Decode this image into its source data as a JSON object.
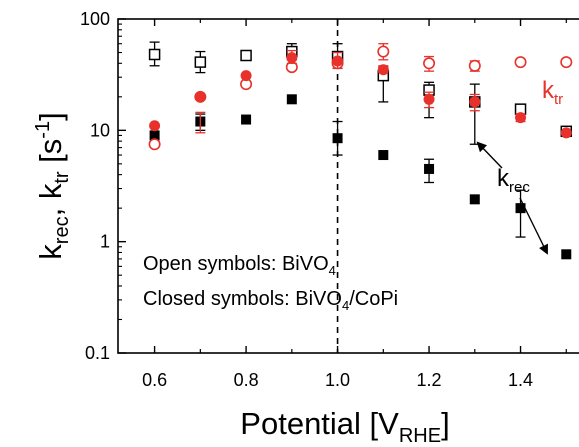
{
  "chart_data": {
    "type": "scatter",
    "xlabel": {
      "main": "Potential [V",
      "sub": "RHE",
      "tail": "]"
    },
    "ylabel": {
      "k1": "k",
      "k1sub": "rec",
      "sep": ", ",
      "k2": "k",
      "k2sub": "tr",
      "unit": " [s",
      "exp": "-1",
      "tail": "]"
    },
    "xlim": [
      0.52,
      1.53
    ],
    "ylim": [
      0.1,
      100
    ],
    "yscale": "log",
    "xticks": [
      "0.6",
      "0.8",
      "1.0",
      "1.2",
      "1.4"
    ],
    "xtick_values": [
      0.6,
      0.8,
      1.0,
      1.2,
      1.4
    ],
    "yticks": [
      "0.1",
      "1",
      "10",
      "100"
    ],
    "ytick_values": [
      0.1,
      1,
      10,
      100
    ],
    "vertical_line_x": 1.0,
    "series": [
      {
        "name": "k_rec BiVO4",
        "marker": "open-square",
        "color": "#000000",
        "x": [
          0.6,
          0.7,
          0.8,
          0.9,
          1.0,
          1.1,
          1.2,
          1.3,
          1.4,
          1.5
        ],
        "y": [
          48,
          41,
          47,
          51,
          46,
          31,
          23,
          18,
          15.5,
          9.8
        ],
        "err_low": [
          38,
          33,
          43,
          43,
          36,
          18,
          13,
          7.5,
          15.5,
          9.8
        ],
        "err_high": [
          62,
          51,
          52,
          60,
          60,
          37,
          27,
          26,
          15.5,
          9.8
        ]
      },
      {
        "name": "k_rec BiVO4/CoPi",
        "marker": "filled-square",
        "color": "#000000",
        "x": [
          0.6,
          0.7,
          0.8,
          0.9,
          1.0,
          1.1,
          1.2,
          1.3,
          1.4,
          1.5
        ],
        "y": [
          9,
          12,
          12.5,
          19,
          8.5,
          6,
          4.5,
          2.4,
          2,
          0.77
        ],
        "err_low": [
          9,
          10,
          12.5,
          19,
          6,
          6,
          3.4,
          2.4,
          1.1,
          0.77
        ],
        "err_high": [
          9,
          14,
          12.5,
          19,
          12,
          6,
          5.5,
          2.4,
          2.9,
          0.77
        ]
      },
      {
        "name": "k_tr BiVO4",
        "marker": "open-circle",
        "color": "#e8312a",
        "x": [
          0.6,
          0.7,
          0.8,
          0.9,
          1.0,
          1.1,
          1.2,
          1.3,
          1.4,
          1.5
        ],
        "y": [
          7.5,
          20,
          26,
          37,
          40,
          51,
          40,
          38,
          41,
          41
        ],
        "err_low": [
          7.5,
          20,
          26,
          37,
          40,
          43,
          34,
          34,
          41,
          41
        ],
        "err_high": [
          7.5,
          20,
          26,
          37,
          40,
          60,
          46,
          42,
          41,
          41
        ]
      },
      {
        "name": "k_tr BiVO4/CoPi",
        "marker": "filled-circle",
        "color": "#e8312a",
        "x": [
          0.6,
          0.7,
          0.8,
          0.9,
          1.0,
          1.1,
          1.2,
          1.3,
          1.4,
          1.5
        ],
        "y": [
          11,
          20,
          31,
          45,
          42,
          35,
          19,
          18,
          13,
          9.5
        ],
        "err_low": [
          11,
          9.5,
          31,
          40,
          36,
          33,
          16,
          15,
          12,
          9.5
        ],
        "err_high": [
          11,
          14.5,
          31,
          52,
          50,
          38,
          22,
          21,
          14,
          9.5
        ]
      }
    ],
    "annotations": {
      "ktr": {
        "main": "k",
        "sub": "tr",
        "color": "#e8312a"
      },
      "krec": {
        "main": "k",
        "sub": "rec",
        "color": "#000000"
      },
      "legend_open": {
        "main": "Open symbols: BiVO",
        "sub": "4"
      },
      "legend_closed": {
        "main": "Closed symbols: BiVO",
        "sub": "4",
        "tail": "/CoPi"
      }
    }
  }
}
